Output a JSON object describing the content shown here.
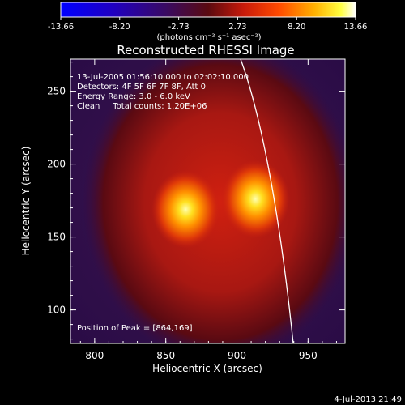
{
  "colorbar": {
    "tick_labels": [
      "-13.66",
      "-8.20",
      "-2.73",
      "2.73",
      "8.20",
      "13.66"
    ],
    "unit_label": "(photons cm⁻² s⁻¹ asec⁻²)",
    "min": -13.66,
    "max": 13.66
  },
  "plot": {
    "title": "Reconstructed RHESSI Image",
    "info_lines": [
      "13-Jul-2005 01:56:10.000 to 02:02:10.000",
      "Detectors: 4F 5F 6F 7F 8F, Att 0",
      "Energy Range: 3.0 - 6.0 keV",
      "Clean     Total counts: 1.20E+06"
    ],
    "peak_label": "Position of Peak = [864,169]",
    "xlabel": "Heliocentric X (arcsec)",
    "ylabel": "Heliocentric Y (arcsec)",
    "x_ticks": [
      "800",
      "850",
      "900",
      "950"
    ],
    "y_ticks": [
      "100",
      "150",
      "200",
      "250"
    ],
    "xlim": [
      783,
      976
    ],
    "ylim": [
      77,
      272
    ]
  },
  "sources": [
    {
      "x": 864,
      "y": 169
    },
    {
      "x": 913,
      "y": 176
    }
  ],
  "timestamp": "4-Jul-2013 21:49",
  "colors": {
    "background": "#000000",
    "text": "#ffffff",
    "limb": "#ffffff"
  }
}
